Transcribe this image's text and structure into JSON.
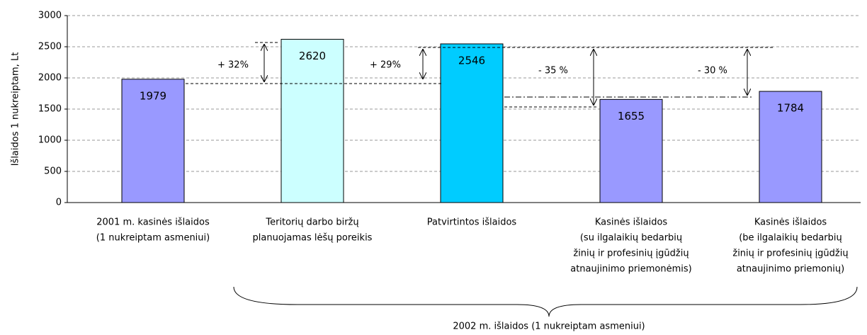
{
  "chart_data": {
    "type": "bar",
    "y_label": "Išlaidos 1 nukreiptam, Lt",
    "categories": [
      [
        "2001 m. kasinės išlaidos",
        "(1 nukreiptam asmeniui)"
      ],
      [
        "Teritorių darbo biržų",
        "planuojamas lėšų poreikis"
      ],
      [
        "Patvirtintos išlaidos"
      ],
      [
        "Kasinės  išlaidos",
        "(su ilgalaikių bedarbių",
        "žinių ir profesinių įgūdžių",
        "atnaujinimo priemonėmis)"
      ],
      [
        "Kasinės išlaidos",
        "(be ilgalaikių bedarbių",
        "žinių ir profesinių įgūdžių",
        "atnaujinimo priemonių)"
      ]
    ],
    "values": [
      1979,
      2620,
      2546,
      1655,
      1784
    ],
    "colors": [
      "#9999ff",
      "#ccffff",
      "#00ccff",
      "#9999ff",
      "#9999ff"
    ],
    "ylim": [
      0,
      3000
    ],
    "yticks": [
      0,
      500,
      1000,
      1500,
      2000,
      2500,
      3000
    ],
    "grid": true,
    "annotations": [
      "+ 32%",
      "+ 29%",
      "- 35 %",
      "- 30 %"
    ],
    "group_label": "2002 m. išlaidos (1 nukreiptam asmeniui)"
  }
}
